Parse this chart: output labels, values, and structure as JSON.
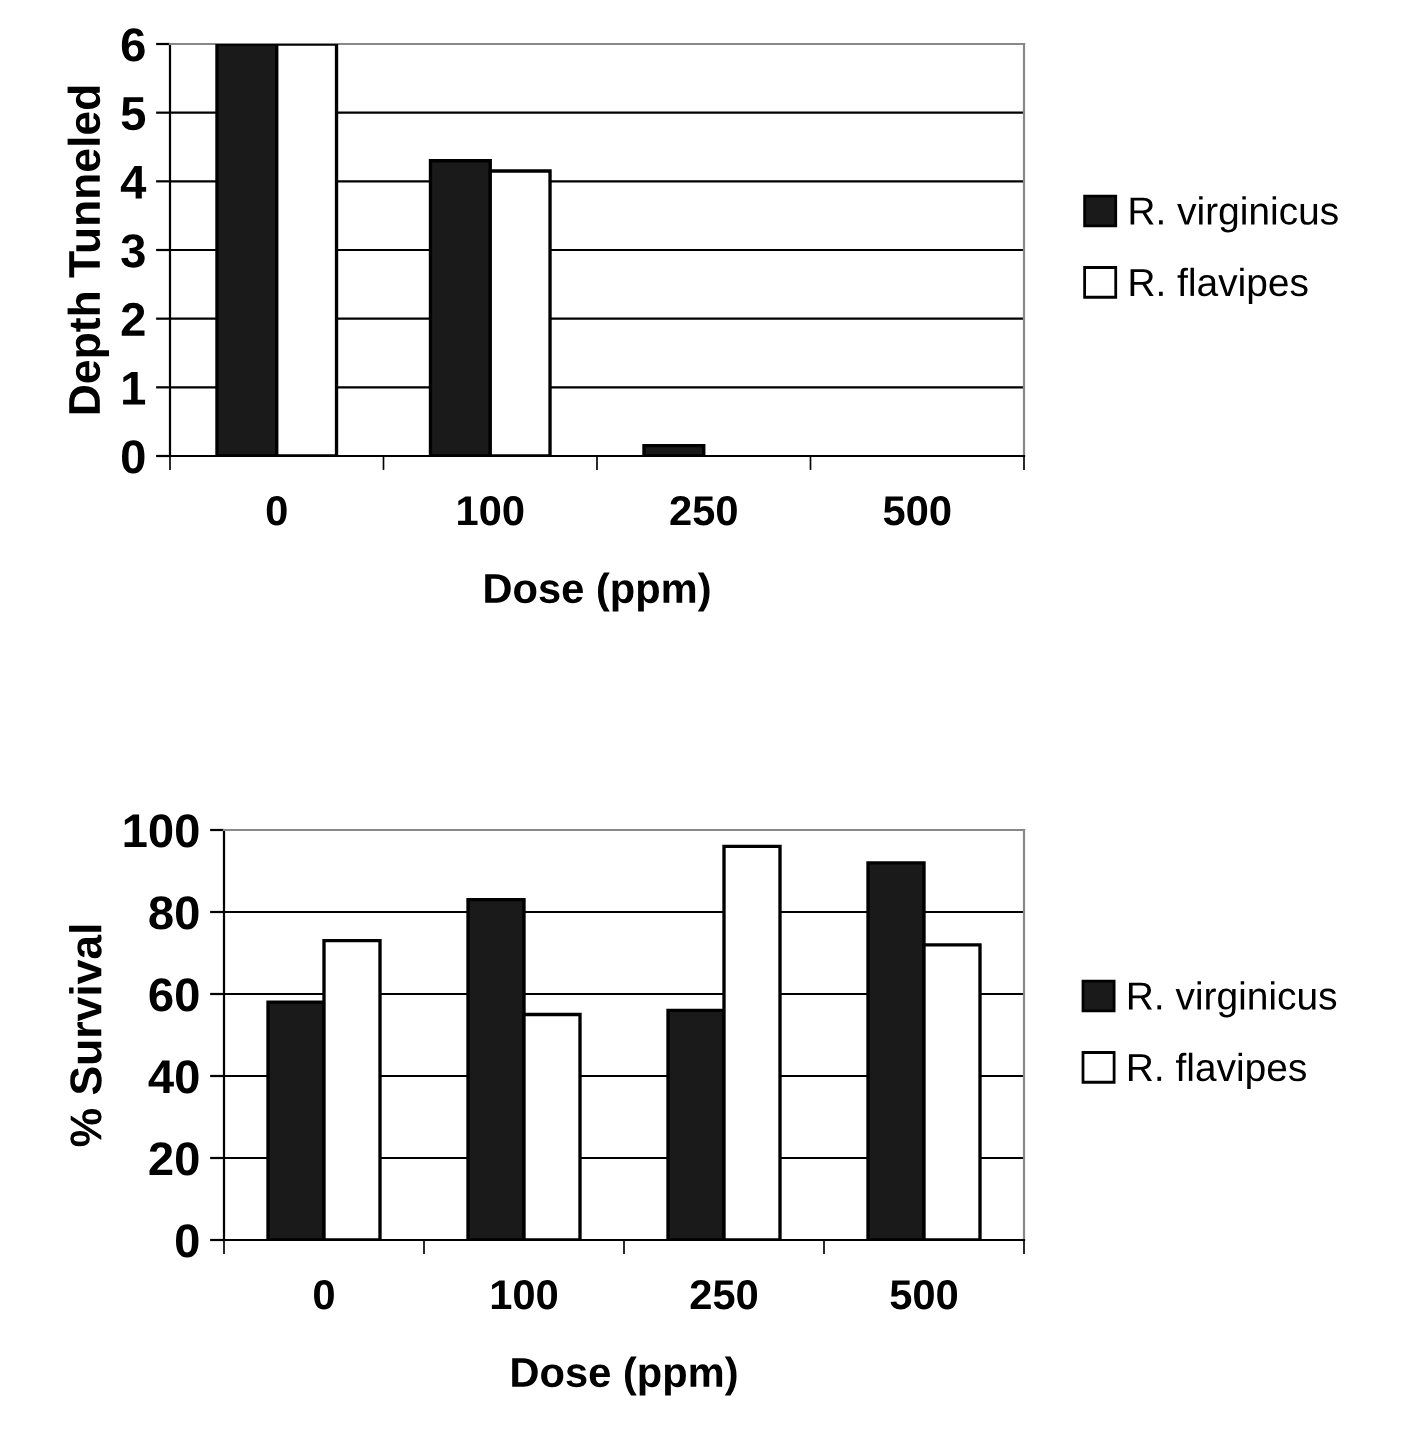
{
  "chart_data": [
    {
      "type": "bar",
      "xlabel": "Dose (ppm)",
      "ylabel": "Depth Tunneled",
      "categories": [
        "0",
        "100",
        "250",
        "500"
      ],
      "ylim": [
        0,
        6
      ],
      "yticks": [
        0,
        1,
        2,
        3,
        4,
        5,
        6
      ],
      "grid": "y",
      "legend": "right",
      "series": [
        {
          "name": "R. virginicus",
          "color": "#1a1a1a",
          "values": [
            6,
            4.3,
            0.15,
            0
          ]
        },
        {
          "name": "R. flavipes",
          "color": "#ffffff",
          "values": [
            6,
            4.15,
            0,
            0
          ]
        }
      ]
    },
    {
      "type": "bar",
      "xlabel": "Dose (ppm)",
      "ylabel": "% Survival",
      "categories": [
        "0",
        "100",
        "250",
        "500"
      ],
      "ylim": [
        0,
        100
      ],
      "yticks": [
        0,
        20,
        40,
        60,
        80,
        100
      ],
      "grid": "y",
      "legend": "right",
      "series": [
        {
          "name": "R. virginicus",
          "color": "#1a1a1a",
          "values": [
            58,
            83,
            56,
            92
          ]
        },
        {
          "name": "R. flavipes",
          "color": "#ffffff",
          "values": [
            73,
            55,
            96,
            72
          ]
        }
      ]
    }
  ]
}
